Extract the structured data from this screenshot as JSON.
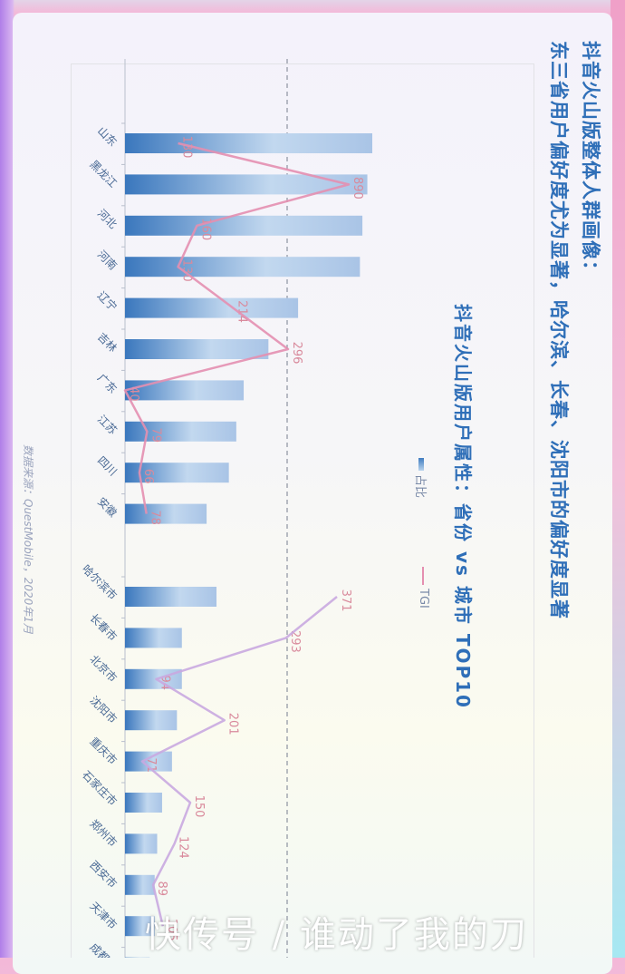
{
  "title_line1": "抖音火山版整体人群画像：",
  "title_line2": "东三省用户偏好度尤为显著，哈尔滨、长春、沈阳市的偏好度显著",
  "source": "数据来源：QuestMobile，2020年1月",
  "watermark": "快传号 / 谁动了我的刀",
  "colors": {
    "title": "#2f6fb8",
    "bar_dark": "#3a77bd",
    "bar_light": "#c2d8ef",
    "line": "#e48fb0",
    "line_alt": "#c9a9e0"
  },
  "chart_data": {
    "type": "bar+line",
    "title": "抖音火山版用户属性：省份 vs 城市 TOP10",
    "legend": [
      "占比",
      "TGI"
    ],
    "legend_position": "top",
    "reference_line": "dashed line at TGI ≈ 296",
    "groups": [
      {
        "categories": [
          "山东",
          "黑龙江",
          "河北",
          "河南",
          "辽宁",
          "吉林",
          "广东",
          "江苏",
          "四川",
          "安徽"
        ],
        "share_relative": [
          100,
          98,
          96,
          95,
          70,
          58,
          48,
          45,
          42,
          33
        ],
        "tgi": [
          130,
          890,
          160,
          130,
          214,
          296,
          40,
          79,
          66,
          78
        ]
      },
      {
        "categories": [
          "哈尔滨市",
          "长春市",
          "北京市",
          "沈阳市",
          "重庆市",
          "石家庄市",
          "郑州市",
          "西安市",
          "天津市",
          "成都市"
        ],
        "share_relative": [
          37,
          23,
          23,
          21,
          19,
          15,
          13,
          12,
          12,
          10
        ],
        "tgi": [
          371,
          293,
          94,
          201,
          71,
          150,
          124,
          89,
          105,
          null
        ]
      }
    ]
  }
}
